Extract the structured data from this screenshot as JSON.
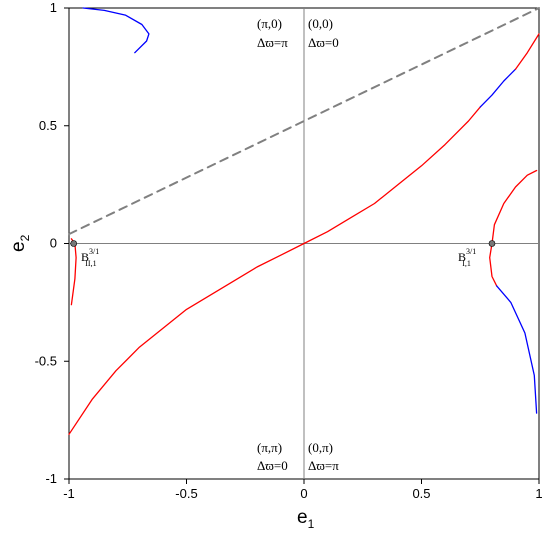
{
  "chart_data": {
    "type": "line",
    "xlabel": "e",
    "xlabel_sub": "1",
    "ylabel": "e",
    "ylabel_sub": "2",
    "xlim": [
      -1,
      1
    ],
    "ylim": [
      -1,
      1
    ],
    "x_ticks": [
      "-1",
      "-0.5",
      "0",
      "0.5",
      "1"
    ],
    "y_ticks": [
      "-1",
      "-0.5",
      "0",
      "0.5",
      "1"
    ],
    "grid": false,
    "quadrant_labels": [
      {
        "line1": "(π,0)",
        "line2": "Δϖ=π"
      },
      {
        "line1": "(0,0)",
        "line2": "Δϖ=0"
      },
      {
        "line1": "(π,π)",
        "line2": "Δϖ=0"
      },
      {
        "line1": "(0,π)",
        "line2": "Δϖ=π"
      }
    ],
    "points": [
      {
        "base": "B",
        "sup": "3/1",
        "sub": "II,1",
        "x": -0.98,
        "y": 0.0
      },
      {
        "base": "B",
        "sup": "3/1",
        "sub": "I,1",
        "x": 0.8,
        "y": 0.0
      }
    ],
    "colors": {
      "red": "#ff0000",
      "blue": "#0000ff",
      "dashed": "#808080",
      "axis": "#808080"
    },
    "series": [
      {
        "color": "red",
        "style": "solid",
        "x": [
          -1.0,
          -0.9,
          -0.8,
          -0.7,
          -0.6,
          -0.5,
          -0.4,
          -0.3,
          -0.2,
          -0.1,
          0.0
        ],
        "y": [
          -0.81,
          -0.66,
          -0.54,
          -0.44,
          -0.36,
          -0.28,
          -0.22,
          -0.16,
          -0.1,
          -0.05,
          0.0
        ]
      },
      {
        "color": "red",
        "style": "solid",
        "x": [
          0.0,
          0.1,
          0.2,
          0.3,
          0.4,
          0.5,
          0.6,
          0.7,
          0.75
        ],
        "y": [
          0.0,
          0.05,
          0.11,
          0.17,
          0.25,
          0.33,
          0.42,
          0.52,
          0.58
        ]
      },
      {
        "color": "blue",
        "style": "solid",
        "x": [
          0.75,
          0.8,
          0.85,
          0.9
        ],
        "y": [
          0.58,
          0.63,
          0.69,
          0.74
        ]
      },
      {
        "color": "red",
        "style": "solid",
        "x": [
          0.9,
          0.95,
          1.0
        ],
        "y": [
          0.74,
          0.81,
          0.89
        ]
      },
      {
        "color": "blue",
        "style": "solid",
        "x": [
          -0.94,
          -0.85,
          -0.76,
          -0.69,
          -0.66,
          -0.67,
          -0.72
        ],
        "y": [
          1.0,
          0.99,
          0.97,
          0.93,
          0.89,
          0.86,
          0.81
        ]
      },
      {
        "color": "red",
        "style": "solid",
        "x": [
          -0.99,
          -0.975,
          -0.97,
          -0.975,
          -0.99
        ],
        "y": [
          -0.26,
          -0.15,
          -0.06,
          0.0,
          0.02
        ]
      },
      {
        "color": "red",
        "style": "solid",
        "x": [
          0.8,
          0.81,
          0.85,
          0.9,
          0.95,
          0.99
        ],
        "y": [
          0.0,
          0.08,
          0.17,
          0.24,
          0.29,
          0.31
        ]
      },
      {
        "color": "red",
        "style": "solid",
        "x": [
          0.8,
          0.79,
          0.8,
          0.82
        ],
        "y": [
          0.0,
          -0.06,
          -0.14,
          -0.18
        ]
      },
      {
        "color": "blue",
        "style": "solid",
        "x": [
          0.82,
          0.88,
          0.94,
          0.98,
          0.99
        ],
        "y": [
          -0.18,
          -0.25,
          -0.38,
          -0.56,
          -0.72
        ]
      },
      {
        "color": "dashed",
        "style": "dashed",
        "x": [
          -1.0,
          1.0
        ],
        "y": [
          0.04,
          1.0
        ]
      }
    ]
  }
}
